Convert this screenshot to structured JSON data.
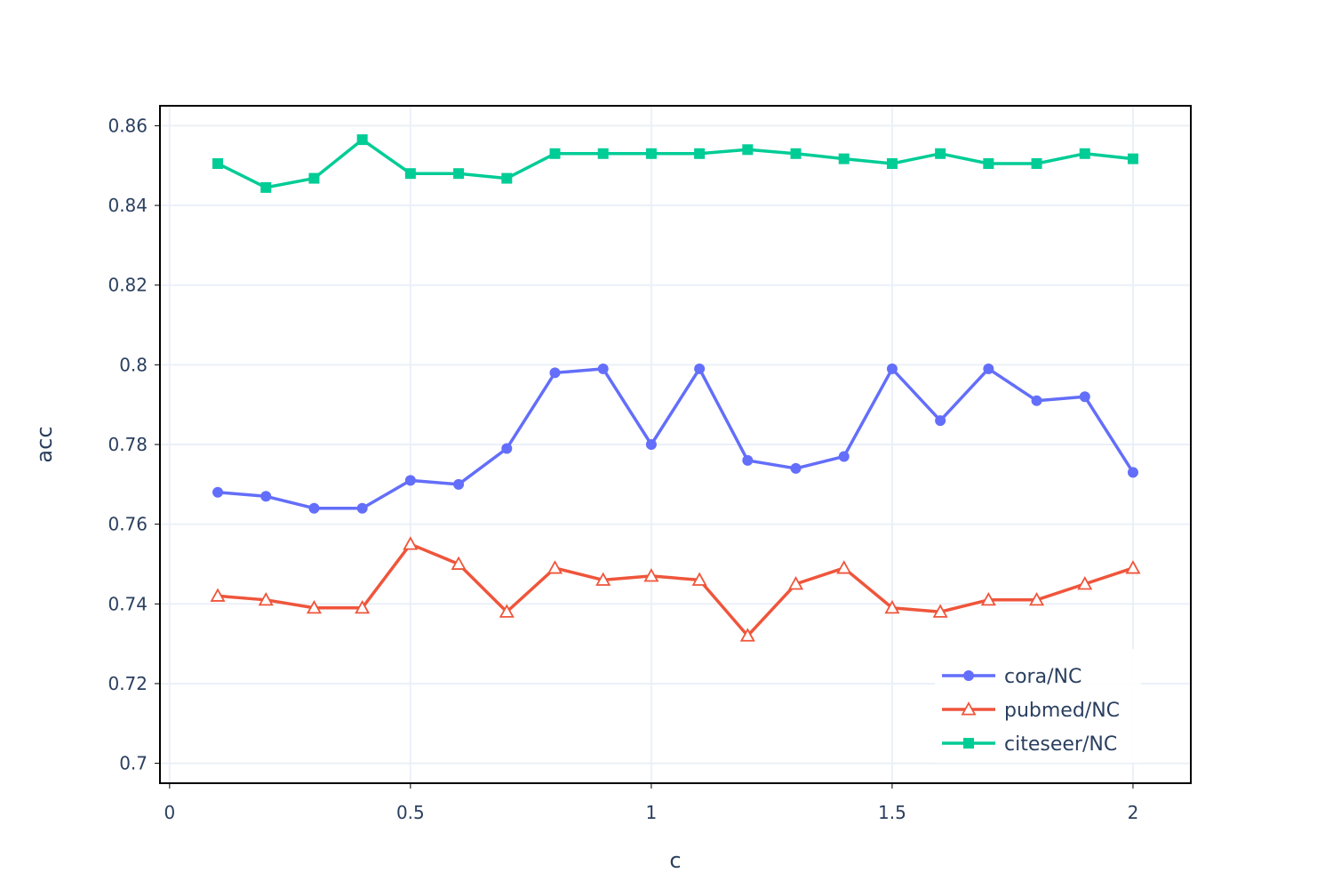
{
  "chart_data": {
    "type": "line",
    "title": "",
    "xlabel": "c",
    "ylabel": "acc",
    "xlim": [
      -0.02,
      2.12
    ],
    "ylim": [
      0.695,
      0.865
    ],
    "xticks": [
      0,
      0.5,
      1,
      1.5,
      2
    ],
    "xtick_labels": [
      "0",
      "0.5",
      "1",
      "1.5",
      "2"
    ],
    "yticks": [
      0.7,
      0.72,
      0.74,
      0.76,
      0.78,
      0.8,
      0.82,
      0.84,
      0.86
    ],
    "ytick_labels": [
      "0.7",
      "0.72",
      "0.74",
      "0.76",
      "0.78",
      "0.8",
      "0.82",
      "0.84",
      "0.86"
    ],
    "grid": true,
    "legend_position": "bottom-right",
    "x": [
      0.1,
      0.2,
      0.3,
      0.4,
      0.5,
      0.6,
      0.7,
      0.8,
      0.9,
      1.0,
      1.1,
      1.2,
      1.3,
      1.4,
      1.5,
      1.6,
      1.7,
      1.8,
      1.9,
      2.0
    ],
    "series": [
      {
        "name": "cora/NC",
        "color": "#636efa",
        "marker": "circle",
        "values": [
          0.768,
          0.767,
          0.764,
          0.764,
          0.771,
          0.77,
          0.779,
          0.798,
          0.799,
          0.78,
          0.799,
          0.776,
          0.774,
          0.777,
          0.799,
          0.786,
          0.799,
          0.791,
          0.792,
          0.773
        ]
      },
      {
        "name": "pubmed/NC",
        "color": "#ef553b",
        "marker": "triangle-open",
        "values": [
          0.742,
          0.741,
          0.739,
          0.739,
          0.755,
          0.75,
          0.738,
          0.749,
          0.746,
          0.747,
          0.746,
          0.732,
          0.745,
          0.749,
          0.739,
          0.738,
          0.741,
          0.741,
          0.745,
          0.749
        ]
      },
      {
        "name": "citeseer/NC",
        "color": "#00cc96",
        "marker": "square",
        "values": [
          0.8505,
          0.8445,
          0.8468,
          0.8565,
          0.848,
          0.848,
          0.8468,
          0.853,
          0.853,
          0.853,
          0.853,
          0.854,
          0.853,
          0.8517,
          0.8505,
          0.853,
          0.8505,
          0.8505,
          0.853,
          0.8517
        ]
      }
    ]
  }
}
